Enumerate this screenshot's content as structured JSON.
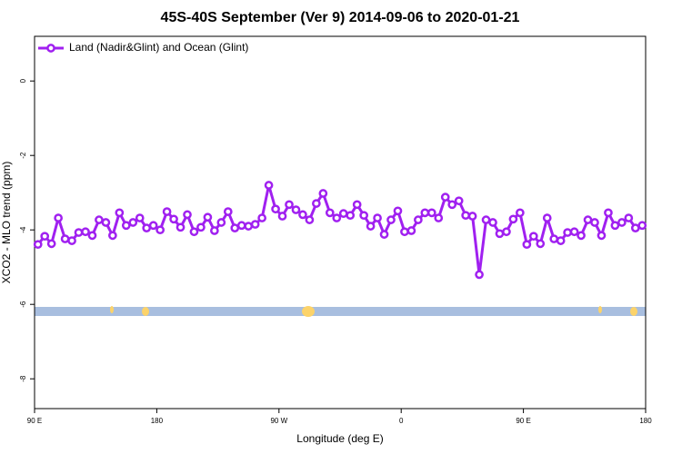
{
  "chart_data": {
    "type": "line",
    "title": "45S-40S September (Ver 9)   2014-09-06 to 2020-01-21",
    "xlabel": "Longitude (deg E)",
    "ylabel": "XCO2 - MLO trend (ppm)",
    "x": [
      92.5,
      97.5,
      102.5,
      107.5,
      112.5,
      117.5,
      122.5,
      127.5,
      132.5,
      137.5,
      142.5,
      147.5,
      152.5,
      157.5,
      162.5,
      167.5,
      172.5,
      177.5,
      182.5,
      187.5,
      192.5,
      197.5,
      202.5,
      207.5,
      212.5,
      217.5,
      222.5,
      227.5,
      232.5,
      237.5,
      242.5,
      247.5,
      252.5,
      257.5,
      262.5,
      267.5,
      272.5,
      277.5,
      282.5,
      287.5,
      292.5,
      297.5,
      302.5,
      307.5,
      312.5,
      317.5,
      322.5,
      327.5,
      332.5,
      337.5,
      342.5,
      347.5,
      352.5,
      357.5,
      362.5,
      367.5,
      372.5,
      377.5,
      382.5,
      387.5,
      392.5,
      397.5,
      402.5,
      407.5,
      412.5,
      417.5,
      422.5,
      427.5,
      432.5,
      437.5,
      442.5,
      447.5,
      452.5,
      457.5,
      462.5,
      467.5,
      472.5,
      477.5,
      482.5,
      487.5,
      492.5,
      497.5,
      502.5,
      507.5,
      512.5,
      517.5,
      522.5,
      527.5,
      532.5,
      537.5
    ],
    "series": [
      {
        "name": "Land (Nadir&Glint) and Ocean (Glint)",
        "color": "#a020f0",
        "values": [
          -4.39,
          -4.17,
          -4.37,
          -3.68,
          -4.24,
          -4.29,
          -4.07,
          -4.05,
          -4.15,
          -3.73,
          -3.8,
          -4.15,
          -3.54,
          -3.88,
          -3.8,
          -3.68,
          -3.95,
          -3.88,
          -4.0,
          -3.51,
          -3.71,
          -3.93,
          -3.59,
          -4.05,
          -3.93,
          -3.66,
          -4.02,
          -3.8,
          -3.51,
          -3.95,
          -3.88,
          -3.9,
          -3.85,
          -3.68,
          -2.8,
          -3.44,
          -3.63,
          -3.32,
          -3.46,
          -3.59,
          -3.73,
          -3.29,
          -3.02,
          -3.54,
          -3.68,
          -3.56,
          -3.61,
          -3.32,
          -3.61,
          -3.9,
          -3.68,
          -4.12,
          -3.73,
          -3.49,
          -4.05,
          -4.02,
          -3.73,
          -3.54,
          -3.54,
          -3.68,
          -3.12,
          -3.32,
          -3.22,
          -3.61,
          -3.63,
          -5.2,
          -3.73,
          -3.8,
          -4.1,
          -4.05,
          -3.71,
          -3.54,
          -4.39,
          -4.17,
          -4.37,
          -3.68,
          -4.24,
          -4.29,
          -4.07,
          -4.05,
          -4.15,
          -3.73,
          -3.8,
          -4.15,
          -3.54,
          -3.88,
          -3.8,
          -3.68,
          -3.95,
          -3.88
        ]
      }
    ],
    "xlim": [
      90,
      540
    ],
    "ylim": [
      1.2,
      -8.8
    ],
    "xticks": [
      {
        "value": 90,
        "label": "90 E"
      },
      180,
      {
        "value": 270,
        "label": "90 W"
      },
      {
        "value": 360,
        "label": "0"
      },
      {
        "value": 450,
        "label": "90 E"
      },
      {
        "value": 540,
        "label": "180"
      }
    ],
    "yticks": [
      0,
      -2,
      -4,
      -6,
      -8
    ],
    "legend": "upper left"
  }
}
